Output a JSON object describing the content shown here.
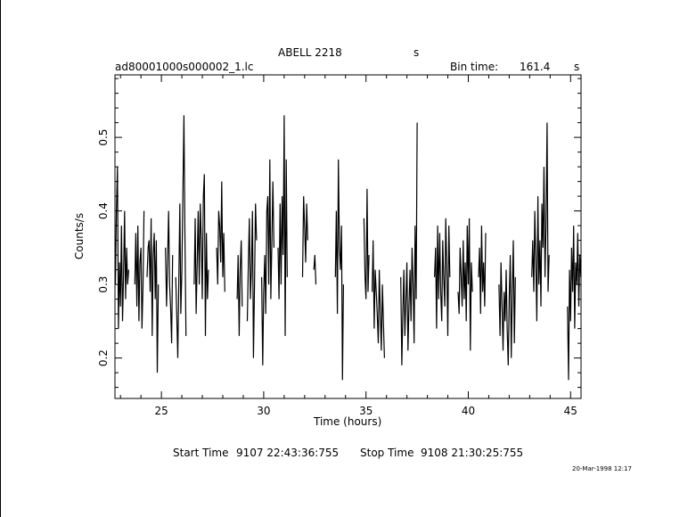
{
  "header": {
    "title": "ABELL 2218",
    "title_unit": "s",
    "file_name": "ad80001000s000002_1.lc",
    "bin_time_label": "Bin time:",
    "bin_time_value": "161.4",
    "bin_time_unit": "s"
  },
  "footer": {
    "start_label": "Start Time",
    "start_value": "9107 22:43:36:755",
    "stop_label": "Stop Time",
    "stop_value": "9108 21:30:25:755",
    "date_stamp": "20-Mar-1998 12:17"
  },
  "chart_data": {
    "type": "line",
    "xlabel": "Time (hours)",
    "ylabel": "Counts/s",
    "xlim": [
      22.73,
      45.51
    ],
    "ylim": [
      0.145,
      0.585
    ],
    "xticks": [
      25,
      30,
      35,
      40,
      45
    ],
    "yticks": [
      0.2,
      0.3,
      0.4,
      0.5
    ],
    "xtick_labels": [
      "25",
      "30",
      "35",
      "40",
      "45"
    ],
    "ytick_labels": [
      "0.2",
      "0.3",
      "0.4",
      "0.5"
    ],
    "grid": false,
    "series": [
      {
        "segments": [
          {
            "x": [
              22.75,
              22.8,
              22.85,
              22.9,
              22.95,
              23.0,
              23.05,
              23.1,
              23.15,
              23.2,
              23.25,
              23.3,
              23.35,
              23.4
            ],
            "y": [
              0.3,
              0.4,
              0.46,
              0.24,
              0.33,
              0.27,
              0.38,
              0.25,
              0.31,
              0.4,
              0.28,
              0.35,
              0.3,
              0.32
            ]
          },
          {
            "x": [
              23.7,
              23.75,
              23.8,
              23.85,
              23.9,
              23.95,
              24.0,
              24.05,
              24.1,
              24.15
            ],
            "y": [
              0.3,
              0.37,
              0.27,
              0.38,
              0.25,
              0.33,
              0.35,
              0.24,
              0.3,
              0.4
            ]
          },
          {
            "x": [
              24.3,
              24.35,
              24.4,
              24.45,
              24.5,
              24.55,
              24.6,
              24.65,
              24.7,
              24.75,
              24.8,
              24.85
            ],
            "y": [
              0.31,
              0.35,
              0.36,
              0.29,
              0.39,
              0.23,
              0.34,
              0.37,
              0.28,
              0.36,
              0.18,
              0.3
            ]
          },
          {
            "x": [
              25.2,
              25.25,
              25.3,
              25.35,
              25.4,
              25.45,
              25.5,
              25.55
            ],
            "y": [
              0.35,
              0.27,
              0.33,
              0.4,
              0.3,
              0.27,
              0.22,
              0.34
            ]
          },
          {
            "x": [
              25.7,
              25.75,
              25.8,
              25.85,
              25.9,
              25.95,
              26.0,
              26.05,
              26.1,
              26.15,
              26.2
            ],
            "y": [
              0.31,
              0.26,
              0.2,
              0.3,
              0.41,
              0.26,
              0.32,
              0.42,
              0.53,
              0.37,
              0.23
            ]
          },
          {
            "x": [
              26.6,
              26.65,
              26.7,
              26.75,
              26.8,
              26.85,
              26.9,
              26.95,
              27.0,
              27.05,
              27.1,
              27.15,
              27.2,
              27.25,
              27.3
            ],
            "y": [
              0.3,
              0.39,
              0.26,
              0.33,
              0.4,
              0.3,
              0.41,
              0.36,
              0.28,
              0.42,
              0.45,
              0.23,
              0.37,
              0.28,
              0.32
            ]
          },
          {
            "x": [
              27.7,
              27.75,
              27.8,
              27.85,
              27.9,
              27.95,
              28.0,
              28.05,
              28.1
            ],
            "y": [
              0.35,
              0.3,
              0.4,
              0.38,
              0.33,
              0.44,
              0.31,
              0.37,
              0.29
            ]
          },
          {
            "x": [
              28.7,
              28.75,
              28.8,
              28.85,
              28.9,
              28.95
            ],
            "y": [
              0.28,
              0.34,
              0.23,
              0.32,
              0.36,
              0.27
            ]
          },
          {
            "x": [
              29.2,
              29.25,
              29.3,
              29.35,
              29.4,
              29.45,
              29.5,
              29.55,
              29.6,
              29.65
            ],
            "y": [
              0.25,
              0.33,
              0.39,
              0.28,
              0.32,
              0.4,
              0.2,
              0.3,
              0.41,
              0.36
            ]
          },
          {
            "x": [
              29.9,
              29.95,
              30.0,
              30.05,
              30.1,
              30.15,
              30.2,
              30.25,
              30.3,
              30.35,
              30.4,
              30.45,
              30.5
            ],
            "y": [
              0.31,
              0.19,
              0.29,
              0.34,
              0.26,
              0.4,
              0.42,
              0.3,
              0.47,
              0.28,
              0.36,
              0.44,
              0.35
            ]
          },
          {
            "x": [
              30.7,
              30.75,
              30.8,
              30.85,
              30.9,
              30.95,
              31.0,
              31.05,
              31.1,
              31.15
            ],
            "y": [
              0.35,
              0.28,
              0.41,
              0.3,
              0.42,
              0.34,
              0.53,
              0.23,
              0.47,
              0.31
            ]
          },
          {
            "x": [
              31.9,
              31.95,
              32.0,
              32.05,
              32.1,
              32.15
            ],
            "y": [
              0.31,
              0.42,
              0.38,
              0.33,
              0.41,
              0.36
            ]
          },
          {
            "x": [
              32.45,
              32.5,
              32.55
            ],
            "y": [
              0.32,
              0.34,
              0.3
            ]
          },
          {
            "x": [
              33.5,
              33.55,
              33.6,
              33.65,
              33.7,
              33.75,
              33.8,
              33.85,
              33.9
            ],
            "y": [
              0.31,
              0.4,
              0.26,
              0.47,
              0.35,
              0.32,
              0.38,
              0.17,
              0.3
            ]
          },
          {
            "x": [
              34.9,
              34.95,
              35.0,
              35.05,
              35.1,
              35.15
            ],
            "y": [
              0.39,
              0.31,
              0.28,
              0.43,
              0.29,
              0.34
            ]
          },
          {
            "x": [
              35.3,
              35.35,
              35.4,
              35.45,
              35.5,
              35.55,
              35.6,
              35.65,
              35.7,
              35.75,
              35.8,
              35.85,
              35.9
            ],
            "y": [
              0.29,
              0.36,
              0.24,
              0.32,
              0.29,
              0.26,
              0.22,
              0.32,
              0.26,
              0.21,
              0.3,
              0.25,
              0.2
            ]
          },
          {
            "x": [
              36.7,
              36.75,
              36.8,
              36.85,
              36.9,
              36.95,
              37.0,
              37.05,
              37.1,
              37.15,
              37.2,
              37.25,
              37.3,
              37.35,
              37.4,
              37.45,
              37.5
            ],
            "y": [
              0.31,
              0.19,
              0.26,
              0.32,
              0.23,
              0.28,
              0.33,
              0.21,
              0.27,
              0.32,
              0.25,
              0.35,
              0.3,
              0.22,
              0.38,
              0.28,
              0.52
            ]
          },
          {
            "x": [
              38.35,
              38.4,
              38.45,
              38.5,
              38.55,
              38.6,
              38.65,
              38.7,
              38.75,
              38.8,
              38.85,
              38.9,
              38.95,
              39.0,
              39.05,
              39.1
            ],
            "y": [
              0.31,
              0.35,
              0.24,
              0.38,
              0.28,
              0.37,
              0.29,
              0.25,
              0.36,
              0.31,
              0.27,
              0.39,
              0.32,
              0.23,
              0.38,
              0.31
            ]
          },
          {
            "x": [
              39.5,
              39.55,
              39.6,
              39.65,
              39.7,
              39.75,
              39.8,
              39.85,
              39.9,
              39.95,
              40.0,
              40.05,
              40.1,
              40.15,
              40.2
            ],
            "y": [
              0.29,
              0.26,
              0.35,
              0.31,
              0.27,
              0.36,
              0.28,
              0.33,
              0.25,
              0.38,
              0.3,
              0.39,
              0.21,
              0.33,
              0.29
            ]
          },
          {
            "x": [
              40.5,
              40.55,
              40.6,
              40.65,
              40.7,
              40.75,
              40.8,
              40.85
            ],
            "y": [
              0.31,
              0.35,
              0.26,
              0.38,
              0.29,
              0.33,
              0.27,
              0.37
            ]
          },
          {
            "x": [
              41.5,
              41.55,
              41.6,
              41.65,
              41.7,
              41.75,
              41.8,
              41.85,
              41.9,
              41.95,
              42.0,
              42.05,
              42.1,
              42.15,
              42.2,
              42.25,
              42.3
            ],
            "y": [
              0.3,
              0.23,
              0.33,
              0.27,
              0.21,
              0.29,
              0.25,
              0.32,
              0.24,
              0.19,
              0.28,
              0.34,
              0.2,
              0.29,
              0.36,
              0.22,
              0.31
            ]
          },
          {
            "x": [
              43.1,
              43.15,
              43.2,
              43.25,
              43.3,
              43.35,
              43.4,
              43.45,
              43.5,
              43.55,
              43.6,
              43.65,
              43.7,
              43.75,
              43.8,
              43.85,
              43.9,
              43.95
            ],
            "y": [
              0.31,
              0.36,
              0.29,
              0.4,
              0.33,
              0.25,
              0.42,
              0.3,
              0.36,
              0.27,
              0.41,
              0.35,
              0.46,
              0.31,
              0.38,
              0.52,
              0.29,
              0.34
            ]
          },
          {
            "x": [
              44.85,
              44.9,
              44.95,
              45.0,
              45.05,
              45.1,
              45.15,
              45.2,
              45.25,
              45.3,
              45.35,
              45.4,
              45.45,
              45.5
            ],
            "y": [
              0.27,
              0.17,
              0.32,
              0.25,
              0.35,
              0.29,
              0.38,
              0.24,
              0.33,
              0.3,
              0.37,
              0.27,
              0.34,
              0.31
            ]
          }
        ]
      }
    ]
  }
}
